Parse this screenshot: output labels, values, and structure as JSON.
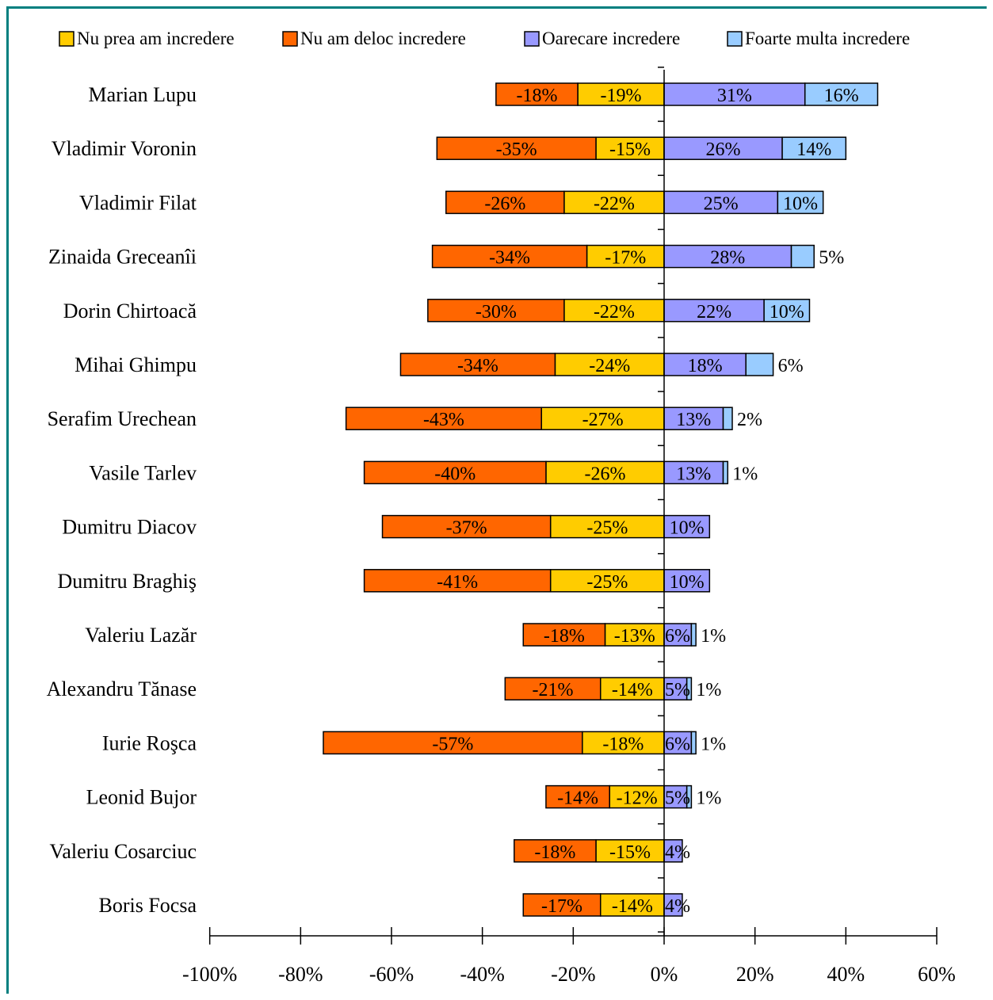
{
  "chart_data": {
    "type": "bar",
    "orientation": "horizontal",
    "stacked": "diverging",
    "title": "",
    "xlabel": "",
    "ylabel": "",
    "xlim": [
      -100,
      60
    ],
    "xticks": [
      -100,
      -80,
      -60,
      -40,
      -20,
      0,
      20,
      40,
      60
    ],
    "tick_format": "%",
    "legend_position": "top",
    "grid": false,
    "categories": [
      "Marian Lupu",
      "Vladimir Voronin",
      "Vladimir Filat",
      "Zinaida Greceanîi",
      "Dorin Chirtoacă",
      "Mihai Ghimpu",
      "Serafim Urechean",
      "Vasile Tarlev",
      "Dumitru Diacov",
      "Dumitru Braghiş",
      "Valeriu Lazăr",
      "Alexandru Tănase",
      "Iurie Roşca",
      "Leonid Bujor",
      "Valeriu Cosarciuc",
      "Boris Focsa"
    ],
    "series": [
      {
        "name": "Nu prea am incredere",
        "color": "#ffcc00",
        "values": [
          -19,
          -15,
          -22,
          -17,
          -22,
          -24,
          -27,
          -26,
          -25,
          -25,
          -13,
          -14,
          -18,
          -12,
          -15,
          -14
        ]
      },
      {
        "name": "Nu am deloc incredere",
        "color": "#ff6600",
        "values": [
          -18,
          -35,
          -26,
          -34,
          -30,
          -34,
          -43,
          -40,
          -37,
          -41,
          -18,
          -21,
          -57,
          -14,
          -18,
          -17
        ]
      },
      {
        "name": "Oarecare incredere",
        "color": "#9999ff",
        "values": [
          31,
          26,
          25,
          28,
          22,
          18,
          13,
          13,
          10,
          10,
          6,
          5,
          6,
          5,
          4,
          4
        ]
      },
      {
        "name": "Foarte multa incredere",
        "color": "#99ccff",
        "values": [
          16,
          14,
          10,
          5,
          10,
          6,
          2,
          1,
          0,
          0,
          1,
          1,
          1,
          1,
          0,
          0
        ]
      }
    ]
  }
}
